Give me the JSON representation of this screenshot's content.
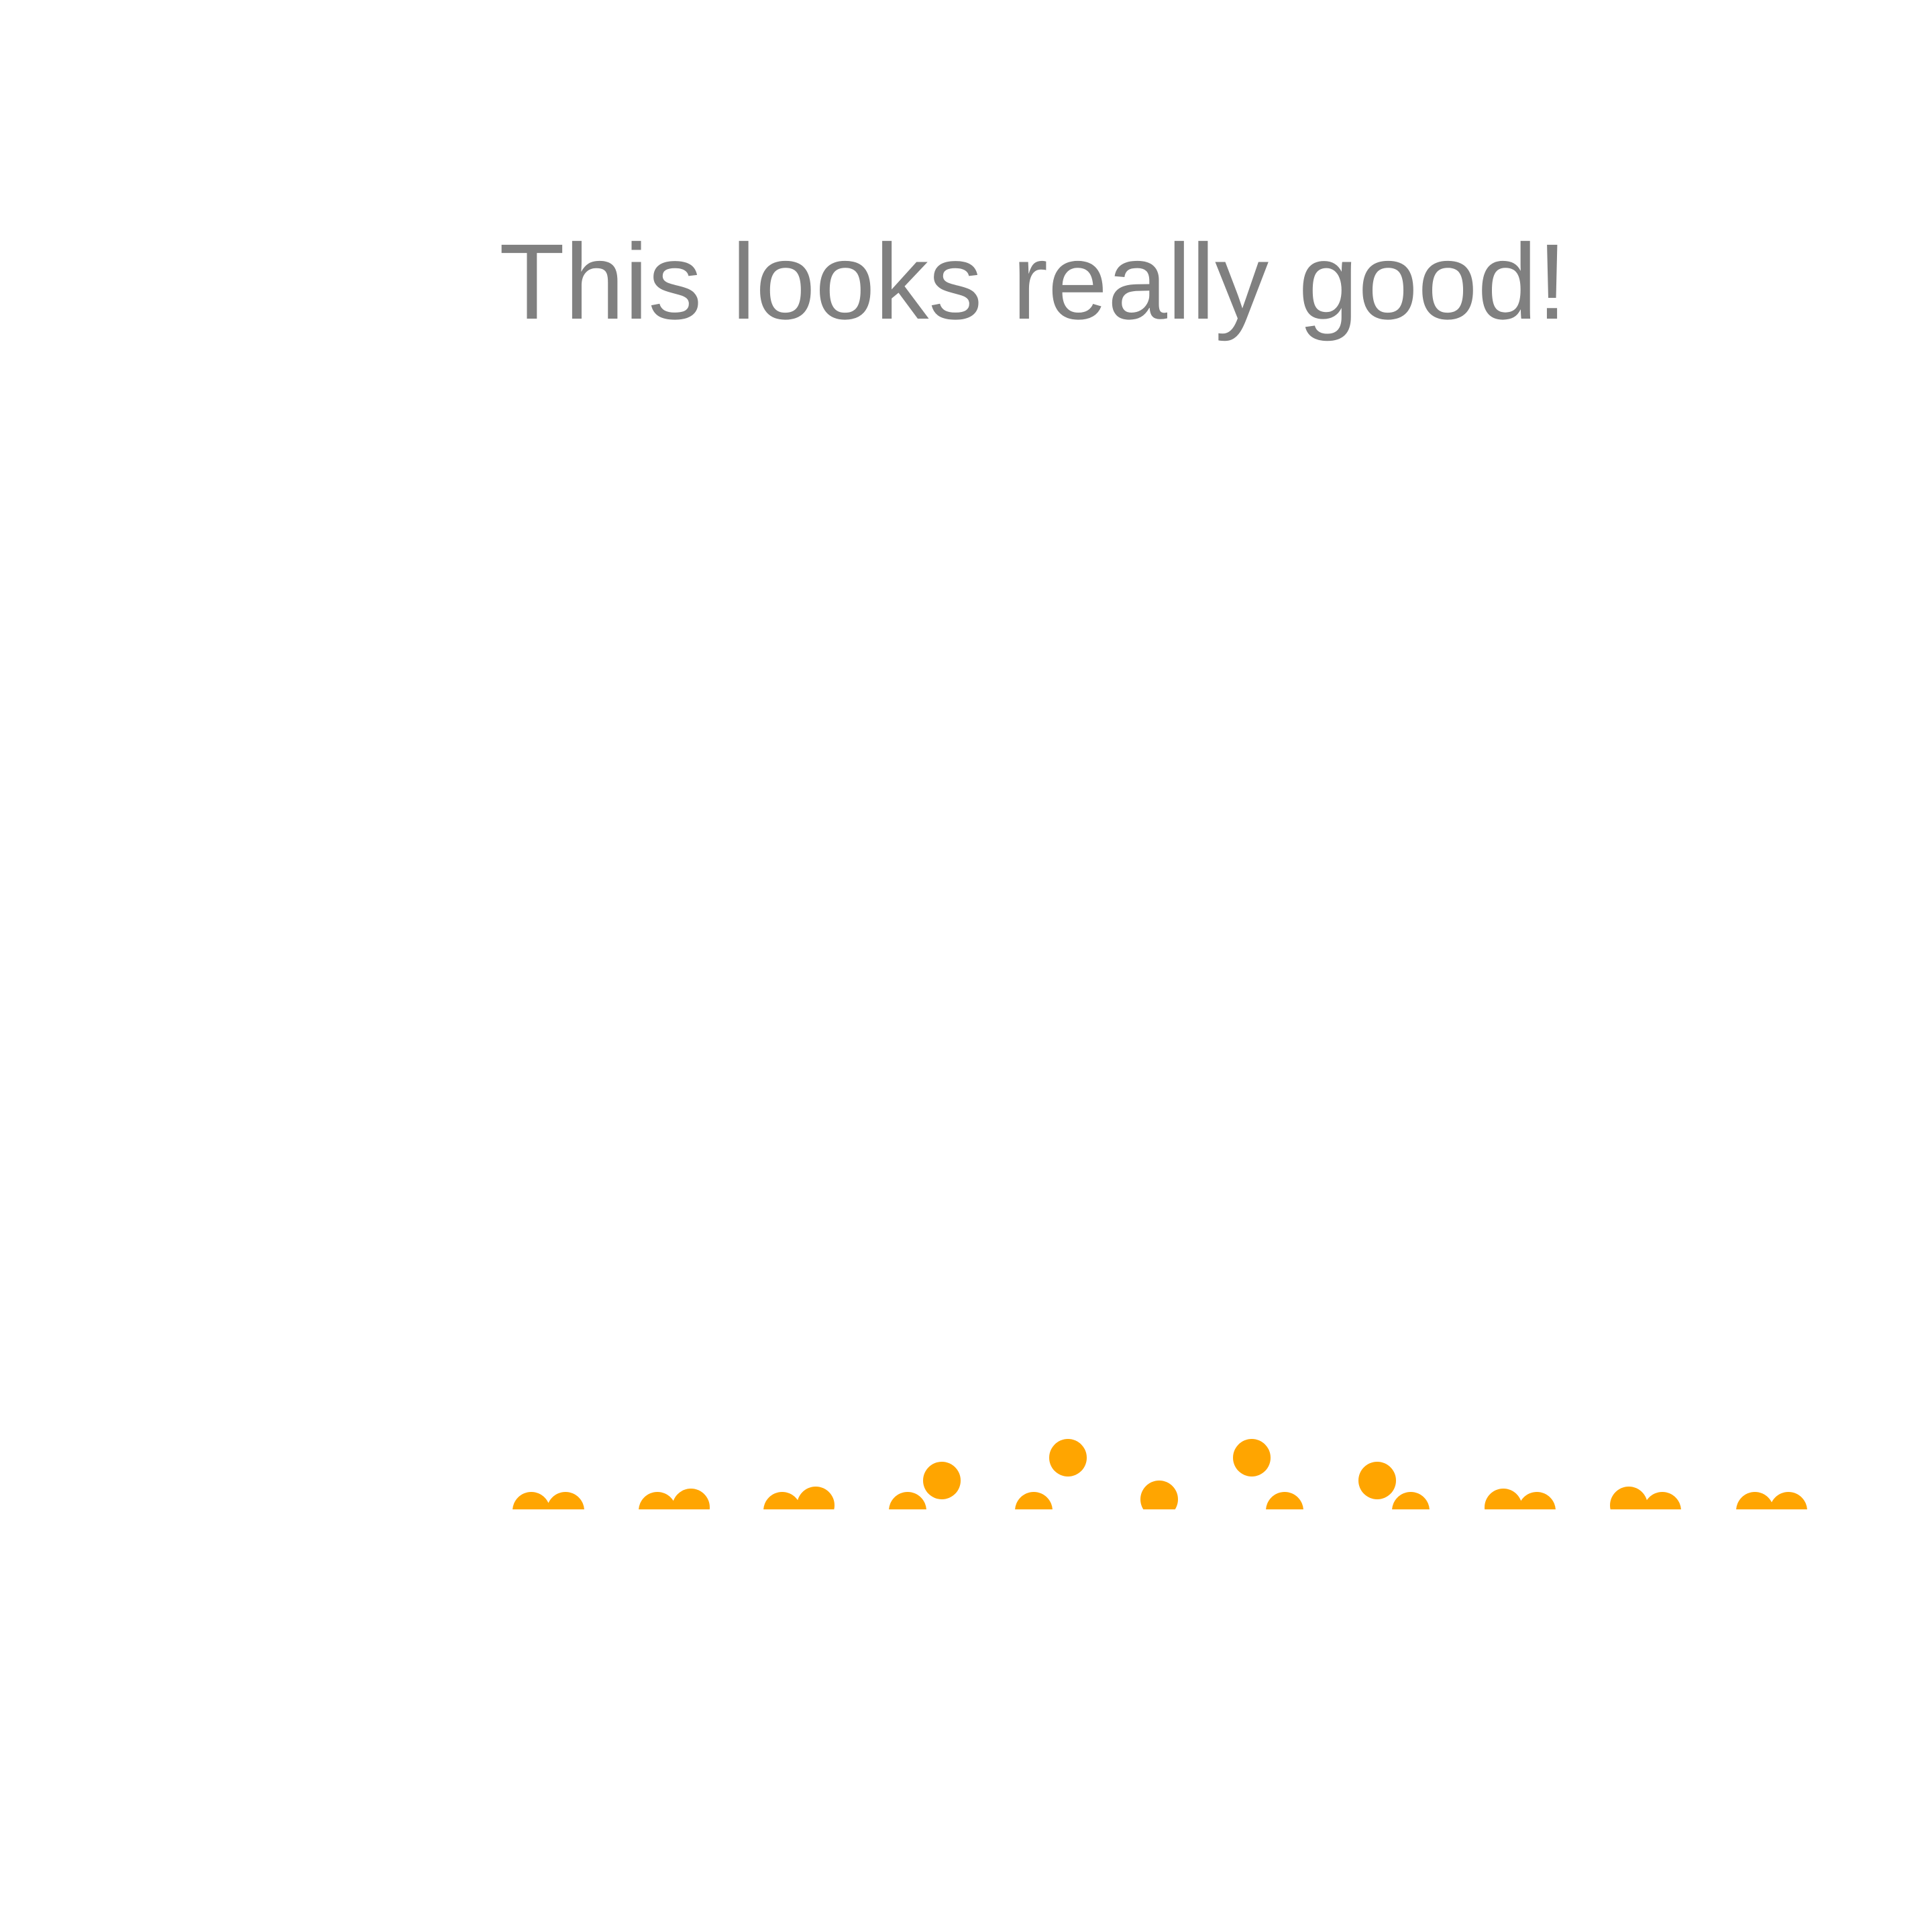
{
  "message": {
    "text": "This looks really good!"
  },
  "loader": {
    "dot_color": "#FFA500",
    "dot_count": 22
  }
}
